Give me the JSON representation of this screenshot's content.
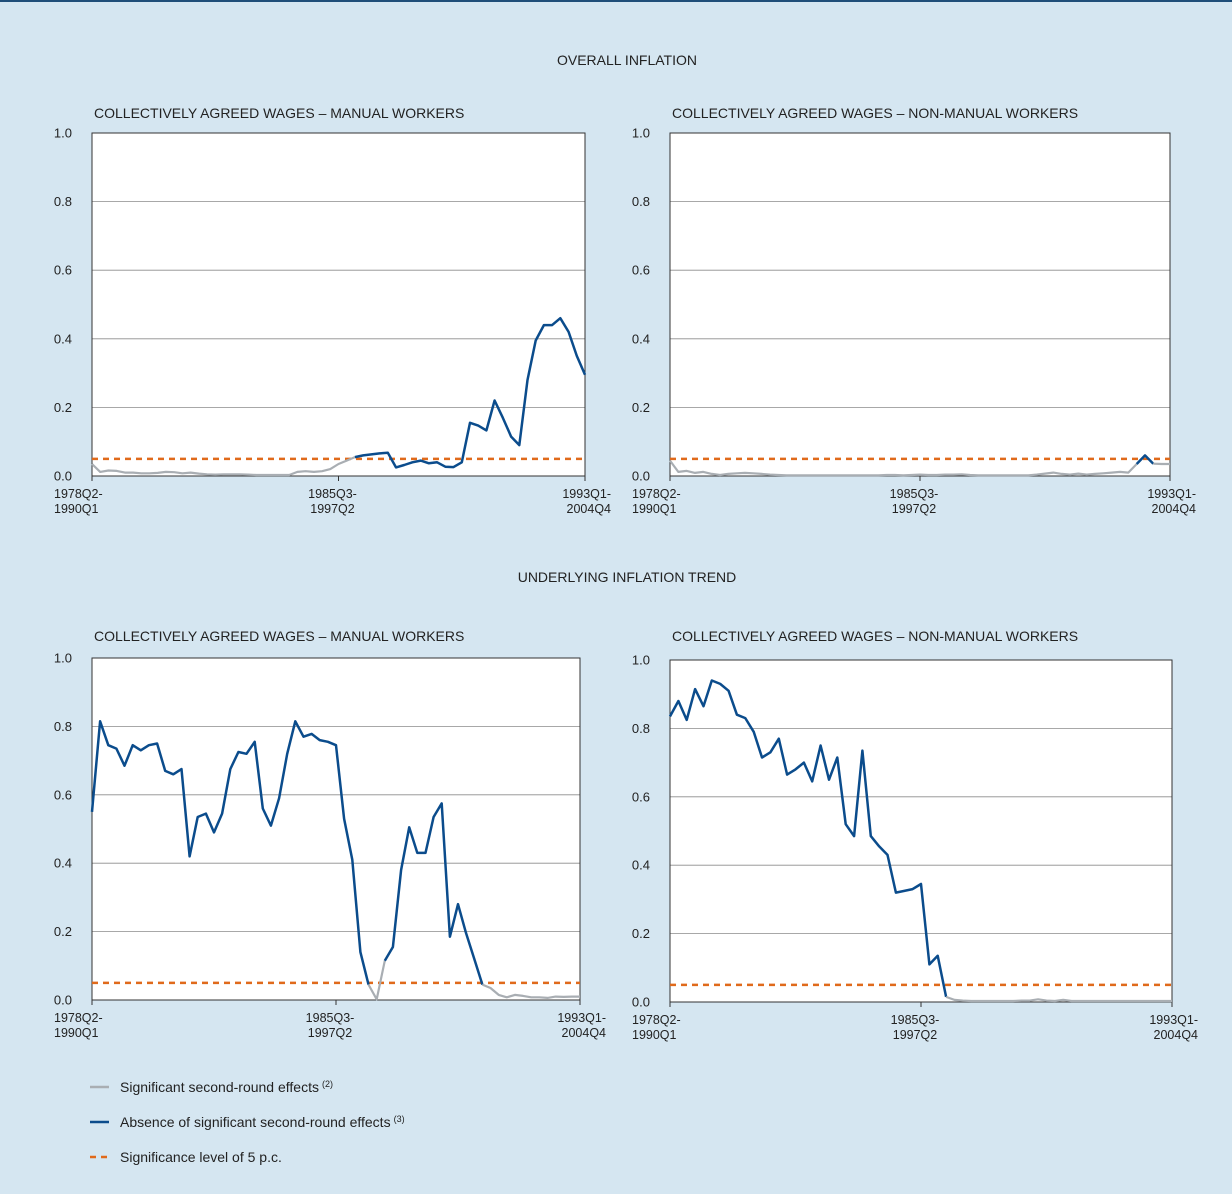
{
  "sections": [
    {
      "title": "OVERALL INFLATION"
    },
    {
      "title": "UNDERLYING INFLATION TREND"
    }
  ],
  "colors": {
    "significant": "#a9aeb3",
    "absence": "#0b4c8c",
    "threshold": "#e06a1b",
    "grid": "#8c8c8c",
    "panel_bg": "#ffffff"
  },
  "legend": [
    {
      "label": "Significant second-round effects",
      "note": "(2)",
      "color": "#a9aeb3",
      "style": "solid"
    },
    {
      "label": "Absence of significant second-round effects",
      "note": "(3)",
      "color": "#0b4c8c",
      "style": "solid"
    },
    {
      "label": "Significance level of 5 p.c.",
      "note": "",
      "color": "#e06a1b",
      "style": "dashed"
    }
  ],
  "chart_data": [
    {
      "type": "line",
      "section": "OVERALL INFLATION",
      "title": "COLLECTIVELY AGREED WAGES – MANUAL WORKERS",
      "ylim": [
        0,
        1.0
      ],
      "yticks": [
        "0.0",
        "0.2",
        "0.4",
        "0.6",
        "0.8",
        "1.0"
      ],
      "xticks": [
        {
          "pos": 0,
          "line1": "1978Q2-",
          "line2": "1990Q1"
        },
        {
          "pos": 0.5,
          "line1": "1985Q3-",
          "line2": "1997Q2"
        },
        {
          "pos": 1,
          "line1": "1993Q1-",
          "line2": "2004Q4"
        }
      ],
      "grid": true,
      "threshold": 0.05,
      "values": [
        0.035,
        0.012,
        0.016,
        0.015,
        0.01,
        0.01,
        0.008,
        0.008,
        0.009,
        0.012,
        0.011,
        0.008,
        0.01,
        0.007,
        0.005,
        0.004,
        0.005,
        0.005,
        0.005,
        0.004,
        0.003,
        0.003,
        0.003,
        0.003,
        0.003,
        0.012,
        0.014,
        0.012,
        0.014,
        0.02,
        0.035,
        0.045,
        0.055,
        0.06,
        0.063,
        0.066,
        0.068,
        0.025,
        0.032,
        0.04,
        0.045,
        0.037,
        0.04,
        0.027,
        0.026,
        0.04,
        0.155,
        0.147,
        0.133,
        0.22,
        0.17,
        0.115,
        0.09,
        0.28,
        0.395,
        0.44,
        0.44,
        0.46,
        0.42,
        0.35,
        0.295
      ],
      "series": [
        {
          "name": "Significant second-round effects",
          "x_range": [
            0,
            32
          ]
        },
        {
          "name": "Absence of significant second-round effects",
          "x_range": [
            32,
            60
          ]
        }
      ]
    },
    {
      "type": "line",
      "section": "OVERALL INFLATION",
      "title": "COLLECTIVELY AGREED WAGES – NON-MANUAL WORKERS",
      "ylim": [
        0,
        1.0
      ],
      "yticks": [
        "0.0",
        "0.2",
        "0.4",
        "0.6",
        "0.8",
        "1.0"
      ],
      "xticks": [
        {
          "pos": 0,
          "line1": "1978Q2-",
          "line2": "1990Q1"
        },
        {
          "pos": 0.5,
          "line1": "1985Q3-",
          "line2": "1997Q2"
        },
        {
          "pos": 1,
          "line1": "1993Q1-",
          "line2": "2004Q4"
        }
      ],
      "grid": true,
      "threshold": 0.05,
      "values": [
        0.045,
        0.012,
        0.015,
        0.009,
        0.012,
        0.006,
        0.003,
        0.006,
        0.008,
        0.009,
        0.008,
        0.006,
        0.004,
        0.003,
        0.002,
        0.002,
        0.002,
        0.002,
        0.002,
        0.002,
        0.002,
        0.002,
        0.002,
        0.002,
        0.002,
        0.002,
        0.003,
        0.003,
        0.002,
        0.003,
        0.004,
        0.003,
        0.003,
        0.004,
        0.004,
        0.005,
        0.003,
        0.002,
        0.002,
        0.002,
        0.002,
        0.002,
        0.002,
        0.002,
        0.004,
        0.007,
        0.01,
        0.006,
        0.004,
        0.007,
        0.004,
        0.006,
        0.008,
        0.01,
        0.012,
        0.01,
        0.035,
        0.06,
        0.036,
        0.035,
        0.035
      ],
      "series": [
        {
          "name": "Significant second-round effects",
          "x_range": [
            0,
            56
          ]
        },
        {
          "name": "Absence of significant second-round effects",
          "x_range": [
            56,
            58
          ]
        },
        {
          "name": "Significant second-round effects",
          "x_range": [
            58,
            60
          ]
        }
      ]
    },
    {
      "type": "line",
      "section": "UNDERLYING INFLATION TREND",
      "title": "COLLECTIVELY AGREED WAGES – MANUAL WORKERS",
      "ylim": [
        0,
        1.0
      ],
      "yticks": [
        "0.0",
        "0.2",
        "0.4",
        "0.6",
        "0.8",
        "1.0"
      ],
      "xticks": [
        {
          "pos": 0,
          "line1": "1978Q2-",
          "line2": "1990Q1"
        },
        {
          "pos": 0.5,
          "line1": "1985Q3-",
          "line2": "1997Q2"
        },
        {
          "pos": 1,
          "line1": "1993Q1-",
          "line2": "2004Q4"
        }
      ],
      "grid": true,
      "threshold": 0.05,
      "values": [
        0.55,
        0.815,
        0.745,
        0.735,
        0.685,
        0.745,
        0.73,
        0.745,
        0.75,
        0.67,
        0.66,
        0.675,
        0.42,
        0.535,
        0.545,
        0.49,
        0.545,
        0.675,
        0.725,
        0.72,
        0.755,
        0.56,
        0.51,
        0.59,
        0.72,
        0.815,
        0.77,
        0.778,
        0.76,
        0.755,
        0.745,
        0.53,
        0.41,
        0.14,
        0.045,
        0.002,
        0.115,
        0.155,
        0.38,
        0.505,
        0.43,
        0.43,
        0.535,
        0.575,
        0.185,
        0.28,
        0.195,
        0.12,
        0.045,
        0.035,
        0.015,
        0.008,
        0.015,
        0.012,
        0.008,
        0.008,
        0.006,
        0.01,
        0.009,
        0.01,
        0.01
      ],
      "series": [
        {
          "name": "Absence of significant second-round effects",
          "x_range": [
            0,
            34
          ]
        },
        {
          "name": "Significant second-round effects",
          "x_range": [
            34,
            36
          ]
        },
        {
          "name": "Absence of significant second-round effects",
          "x_range": [
            36,
            48
          ]
        },
        {
          "name": "Significant second-round effects",
          "x_range": [
            48,
            60
          ]
        }
      ]
    },
    {
      "type": "line",
      "section": "UNDERLYING INFLATION TREND",
      "title": "COLLECTIVELY AGREED WAGES – NON-MANUAL WORKERS",
      "ylim": [
        0,
        1.0
      ],
      "yticks": [
        "0.0",
        "0.2",
        "0.4",
        "0.6",
        "0.8",
        "1.0"
      ],
      "xticks": [
        {
          "pos": 0,
          "line1": "1978Q2-",
          "line2": "1990Q1"
        },
        {
          "pos": 0.5,
          "line1": "1985Q3-",
          "line2": "1997Q2"
        },
        {
          "pos": 1,
          "line1": "1993Q1-",
          "line2": "2004Q4"
        }
      ],
      "grid": true,
      "threshold": 0.05,
      "values": [
        0.835,
        0.88,
        0.825,
        0.915,
        0.865,
        0.94,
        0.93,
        0.91,
        0.84,
        0.83,
        0.79,
        0.715,
        0.73,
        0.77,
        0.665,
        0.68,
        0.7,
        0.645,
        0.75,
        0.65,
        0.715,
        0.52,
        0.485,
        0.735,
        0.485,
        0.455,
        0.43,
        0.32,
        0.325,
        0.33,
        0.345,
        0.11,
        0.135,
        0.015,
        0.006,
        0.004,
        0.003,
        0.003,
        0.003,
        0.003,
        0.003,
        0.003,
        0.004,
        0.004,
        0.008,
        0.004,
        0.003,
        0.006,
        0.003,
        0.003,
        0.003,
        0.003,
        0.003,
        0.003,
        0.003,
        0.003,
        0.003,
        0.003,
        0.003,
        0.003,
        0.003
      ],
      "series": [
        {
          "name": "Absence of significant second-round effects",
          "x_range": [
            0,
            33
          ]
        },
        {
          "name": "Significant second-round effects",
          "x_range": [
            33,
            60
          ]
        }
      ]
    }
  ]
}
